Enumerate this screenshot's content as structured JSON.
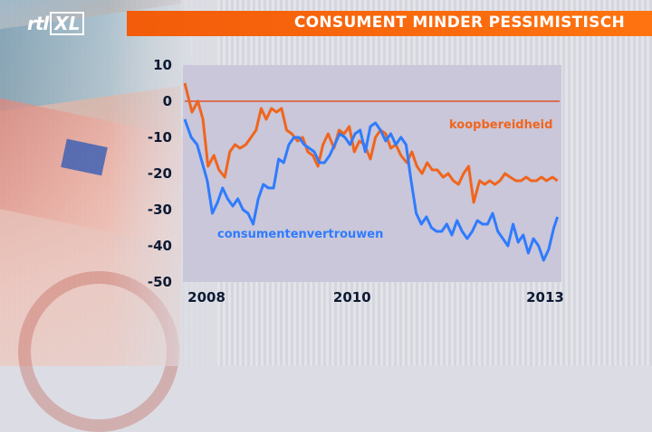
{
  "header": {
    "logo": "rtl XL",
    "title": "CONSUMENT MINDER PESSIMISTISCH"
  },
  "colors": {
    "title_bar": "#f25c0a",
    "consumentenvertrouwen": "#2f7bff",
    "koopbereidheid": "#f0651e",
    "zero_line": "#e0502a",
    "plot_background": "#c9c7d9"
  },
  "chart_data": {
    "type": "line",
    "title": "CONSUMENT MINDER PESSIMISTISCH",
    "xlabel": "",
    "ylabel": "",
    "xlim": [
      2007.95,
      2013.1
    ],
    "ylim": [
      -50,
      10
    ],
    "y_ticks": [
      10,
      0,
      -10,
      -20,
      -30,
      -40,
      -50
    ],
    "x_ticks": [
      {
        "value": 2008,
        "label": "2008"
      },
      {
        "value": 2010,
        "label": "2010"
      },
      {
        "value": 2013,
        "label": "2013"
      }
    ],
    "reference_line": 0,
    "grid": false,
    "series": [
      {
        "name": "koopbereidheid",
        "color": "#f0651e",
        "x": [
          2007.95,
          2008.05,
          2008.13,
          2008.2,
          2008.27,
          2008.35,
          2008.42,
          2008.5,
          2008.57,
          2008.64,
          2008.71,
          2008.79,
          2008.86,
          2008.93,
          2009.0,
          2009.07,
          2009.14,
          2009.21,
          2009.28,
          2009.35,
          2009.42,
          2009.5,
          2009.57,
          2009.64,
          2009.71,
          2009.78,
          2009.85,
          2009.92,
          2010.0,
          2010.07,
          2010.14,
          2010.21,
          2010.28,
          2010.35,
          2010.42,
          2010.5,
          2010.57,
          2010.64,
          2010.71,
          2010.78,
          2010.85,
          2010.92,
          2011.0,
          2011.07,
          2011.14,
          2011.21,
          2011.28,
          2011.35,
          2011.42,
          2011.5,
          2011.57,
          2011.64,
          2011.71,
          2011.78,
          2011.85,
          2011.92,
          2012.0,
          2012.07,
          2012.14,
          2012.21,
          2012.28,
          2012.35,
          2012.42,
          2012.5,
          2012.57,
          2012.64,
          2012.71,
          2012.78,
          2012.85,
          2012.92,
          2013.0,
          2013.07
        ],
        "y": [
          5,
          -3,
          0,
          -5,
          -18,
          -15,
          -19,
          -21,
          -14,
          -12,
          -13,
          -12,
          -10,
          -8,
          -2,
          -5,
          -2,
          -3,
          -2,
          -8,
          -9,
          -11,
          -10,
          -14,
          -15,
          -18,
          -12,
          -9,
          -13,
          -8,
          -9,
          -7,
          -14,
          -11,
          -12,
          -16,
          -10,
          -8,
          -9,
          -13,
          -12,
          -15,
          -17,
          -14,
          -18,
          -20,
          -17,
          -19,
          -19,
          -21,
          -20,
          -22,
          -23,
          -20,
          -18,
          -28,
          -22,
          -23,
          -22,
          -23,
          -22,
          -20,
          -21,
          -22,
          -22,
          -21,
          -22,
          -22,
          -21,
          -22,
          -21,
          -22
        ]
      },
      {
        "name": "consumentenvertrouwen",
        "color": "#2f7bff",
        "x": [
          2007.95,
          2008.04,
          2008.12,
          2008.19,
          2008.26,
          2008.33,
          2008.4,
          2008.47,
          2008.54,
          2008.61,
          2008.68,
          2008.75,
          2008.82,
          2008.89,
          2008.96,
          2009.03,
          2009.1,
          2009.17,
          2009.24,
          2009.31,
          2009.38,
          2009.45,
          2009.52,
          2009.59,
          2009.66,
          2009.73,
          2009.8,
          2009.87,
          2009.94,
          2010.01,
          2010.08,
          2010.15,
          2010.22,
          2010.29,
          2010.36,
          2010.43,
          2010.5,
          2010.57,
          2010.64,
          2010.71,
          2010.78,
          2010.85,
          2010.92,
          2010.99,
          2011.06,
          2011.13,
          2011.2,
          2011.27,
          2011.34,
          2011.41,
          2011.48,
          2011.55,
          2011.62,
          2011.69,
          2011.76,
          2011.83,
          2011.9,
          2011.97,
          2012.04,
          2012.11,
          2012.18,
          2012.25,
          2012.32,
          2012.39,
          2012.46,
          2012.53,
          2012.6,
          2012.67,
          2012.74,
          2012.81,
          2012.88,
          2012.95,
          2013.02,
          2013.07
        ],
        "y": [
          -5,
          -10,
          -12,
          -17,
          -22,
          -31,
          -28,
          -24,
          -27,
          -29,
          -27,
          -30,
          -31,
          -34,
          -27,
          -23,
          -24,
          -24,
          -16,
          -17,
          -12,
          -10,
          -10,
          -12,
          -13,
          -14,
          -17,
          -17,
          -15,
          -12,
          -9,
          -10,
          -12,
          -9,
          -8,
          -14,
          -7,
          -6,
          -8,
          -11,
          -9,
          -12,
          -10,
          -12,
          -22,
          -31,
          -34,
          -32,
          -35,
          -36,
          -36,
          -34,
          -37,
          -33,
          -36,
          -38,
          -36,
          -33,
          -34,
          -34,
          -31,
          -36,
          -38,
          -40,
          -34,
          -39,
          -37,
          -42,
          -38,
          -40,
          -44,
          -41,
          -35,
          -32
        ]
      }
    ],
    "labels": [
      {
        "text": "koopbereidheid",
        "series": "koopbereidheid"
      },
      {
        "text": "consumentenvertrouwen",
        "series": "consumentenvertrouwen"
      }
    ]
  }
}
